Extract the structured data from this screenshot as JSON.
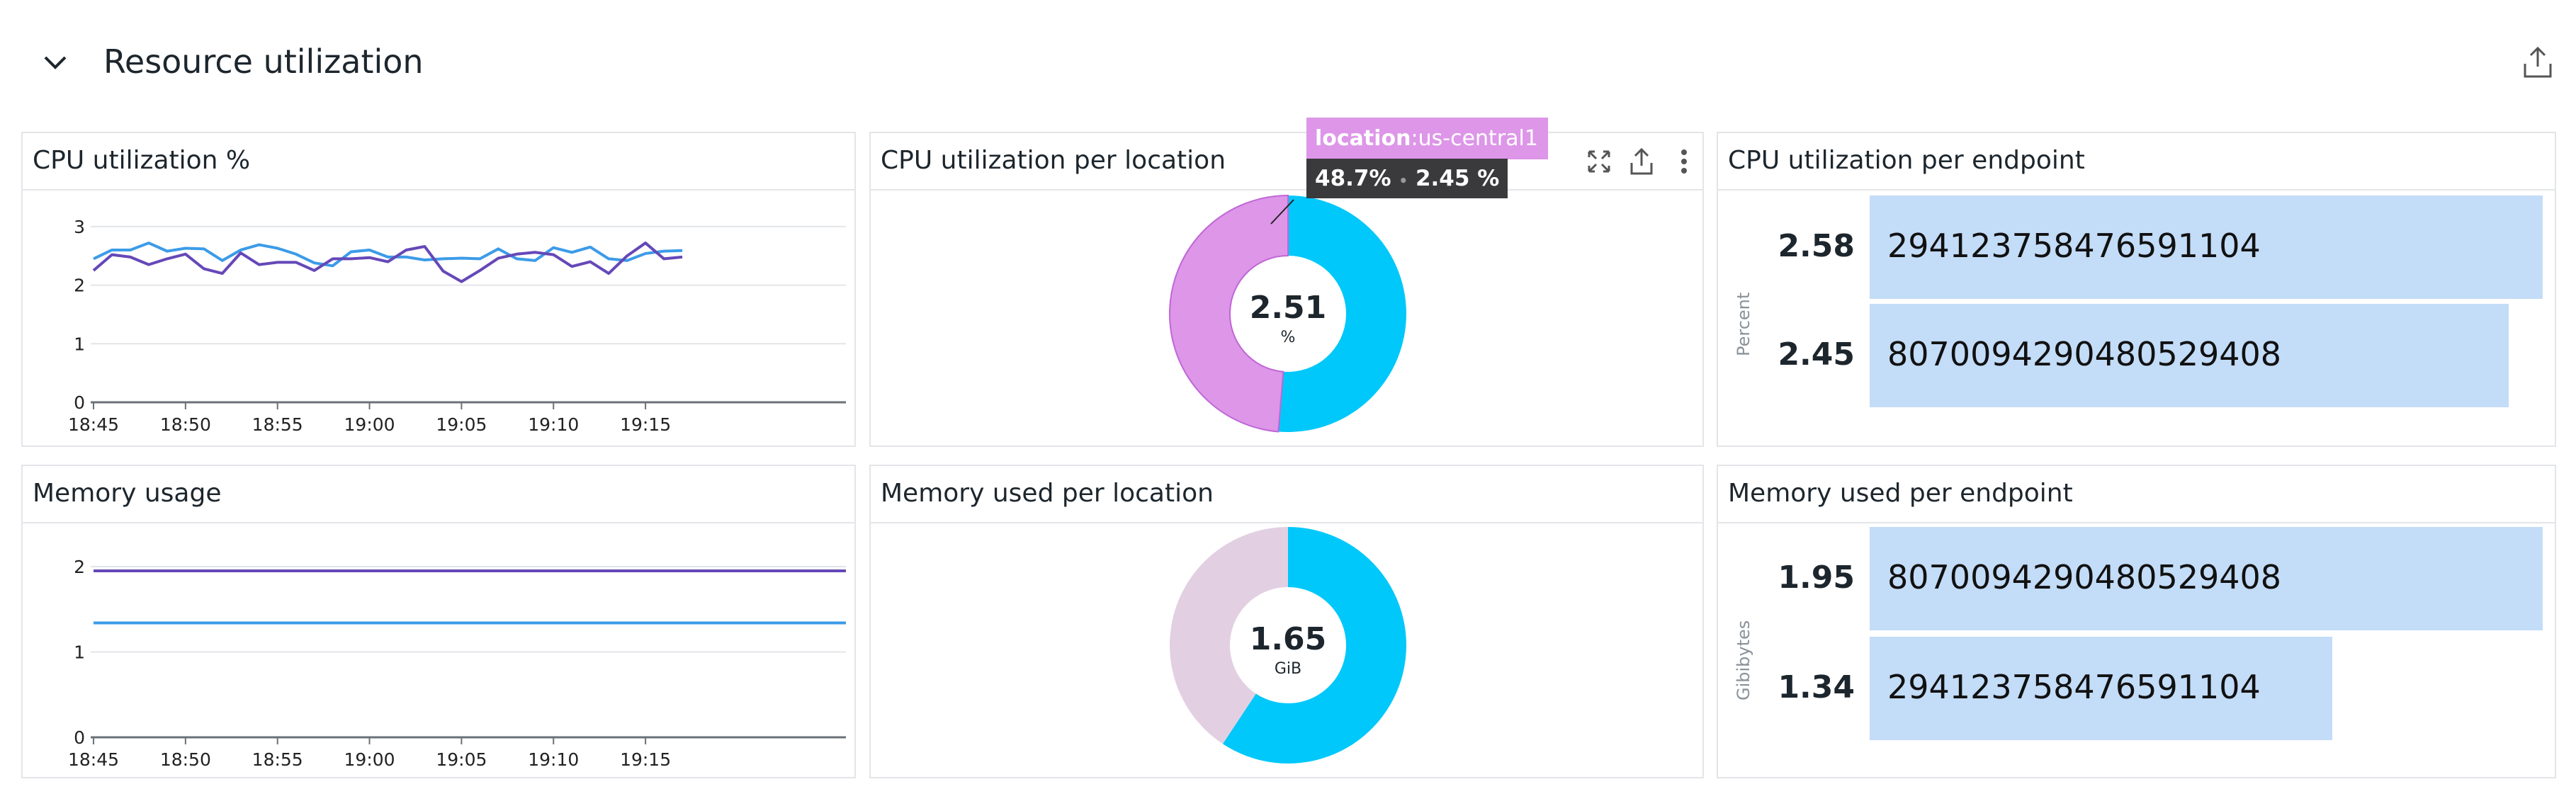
{
  "section": {
    "title": "Resource utilization",
    "collapse_icon": "chevron-down-icon",
    "share_icon": "share-icon"
  },
  "colors": {
    "blue": "#3c9be8",
    "purple": "#6548b8",
    "donut_blue": "#00c8fa",
    "donut_pink": "#dd96e8",
    "donut_gray": "#e2d0e2",
    "bar": "#c3dcf8"
  },
  "panels": {
    "cpu_util": {
      "title": "CPU utilization %"
    },
    "cpu_location": {
      "title": "CPU utilization per location",
      "center_value": "2.51",
      "center_unit": "%",
      "tooltip": {
        "key": "location",
        "value": ":us-central1",
        "percent": "48.7%",
        "separator": "•",
        "amount": "2.45 %"
      },
      "actions": [
        "expand-icon",
        "share-icon",
        "more-icon"
      ]
    },
    "cpu_endpoint": {
      "title": "CPU utilization per endpoint",
      "axis_label": "Percent",
      "rows": [
        {
          "value": "2.58",
          "label": "294123758476591104",
          "amount": 2.58
        },
        {
          "value": "2.45",
          "label": "8070094290480529408",
          "amount": 2.45
        }
      ]
    },
    "memory_usage": {
      "title": "Memory usage"
    },
    "memory_location": {
      "title": "Memory used per location",
      "center_value": "1.65",
      "center_unit": "GiB"
    },
    "memory_endpoint": {
      "title": "Memory used per endpoint",
      "axis_label": "Gibibytes",
      "rows": [
        {
          "value": "1.95",
          "label": "8070094290480529408",
          "amount": 1.95
        },
        {
          "value": "1.34",
          "label": "294123758476591104",
          "amount": 1.34
        }
      ]
    }
  },
  "chart_data": [
    {
      "type": "line",
      "title": "CPU utilization %",
      "x_ticks": [
        "18:45",
        "18:50",
        "18:55",
        "19:00",
        "19:05",
        "19:10",
        "19:15"
      ],
      "y_ticks": [
        "0",
        "1",
        "2",
        "3"
      ],
      "ylim": [
        0,
        3.5
      ],
      "grid": true,
      "x": [
        "18:45",
        "18:46",
        "18:47",
        "18:48",
        "18:49",
        "18:50",
        "18:51",
        "18:52",
        "18:53",
        "18:54",
        "18:55",
        "18:56",
        "18:57",
        "18:58",
        "18:59",
        "19:00",
        "19:01",
        "19:02",
        "19:03",
        "19:04",
        "19:05",
        "19:06",
        "19:07",
        "19:08",
        "19:09",
        "19:10",
        "19:11",
        "19:12",
        "19:13",
        "19:14",
        "19:15",
        "19:16",
        "19:17"
      ],
      "series": [
        {
          "color": "#3c9be8",
          "values": [
            2.45,
            2.6,
            2.6,
            2.72,
            2.58,
            2.63,
            2.62,
            2.42,
            2.6,
            2.69,
            2.63,
            2.53,
            2.38,
            2.33,
            2.57,
            2.6,
            2.48,
            2.48,
            2.43,
            2.45,
            2.46,
            2.45,
            2.62,
            2.45,
            2.42,
            2.64,
            2.56,
            2.65,
            2.45,
            2.42,
            2.54,
            2.58,
            2.59
          ]
        },
        {
          "color": "#6548b8",
          "values": [
            2.25,
            2.52,
            2.48,
            2.35,
            2.45,
            2.53,
            2.28,
            2.2,
            2.55,
            2.35,
            2.39,
            2.39,
            2.25,
            2.45,
            2.45,
            2.47,
            2.4,
            2.6,
            2.66,
            2.24,
            2.06,
            2.25,
            2.46,
            2.53,
            2.56,
            2.52,
            2.32,
            2.4,
            2.2,
            2.5,
            2.72,
            2.45,
            2.48
          ]
        }
      ]
    },
    {
      "type": "pie",
      "title": "CPU utilization per location",
      "slices": [
        {
          "label": "us-central1",
          "percent": 48.7,
          "value": 2.45,
          "color": "#dd96e8"
        },
        {
          "percent": 51.3,
          "value": 2.58,
          "color": "#00c8fa"
        }
      ]
    },
    {
      "type": "bar",
      "title": "CPU utilization per endpoint",
      "ylabel": "Percent",
      "categories": [
        "294123758476591104",
        "8070094290480529408"
      ],
      "values": [
        2.58,
        2.45
      ]
    },
    {
      "type": "line",
      "title": "Memory usage",
      "x_ticks": [
        "18:45",
        "18:50",
        "18:55",
        "19:00",
        "19:05",
        "19:10",
        "19:15"
      ],
      "y_ticks": [
        "0",
        "1",
        "2"
      ],
      "ylim": [
        0,
        2.4
      ],
      "grid": true,
      "series": [
        {
          "color": "#6548b8",
          "values": [
            1.95,
            1.95
          ]
        },
        {
          "color": "#3c9be8",
          "values": [
            1.34,
            1.34
          ]
        }
      ]
    },
    {
      "type": "pie",
      "title": "Memory used per location",
      "slices": [
        {
          "percent": 59.3,
          "value": 1.95,
          "color": "#00c8fa"
        },
        {
          "percent": 40.7,
          "value": 1.34,
          "color": "#e2d0e2"
        }
      ]
    },
    {
      "type": "bar",
      "title": "Memory used per endpoint",
      "ylabel": "Gibibytes",
      "categories": [
        "8070094290480529408",
        "294123758476591104"
      ],
      "values": [
        1.95,
        1.34
      ]
    }
  ]
}
